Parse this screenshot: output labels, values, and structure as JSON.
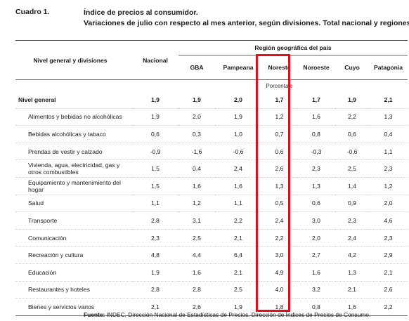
{
  "caption": {
    "label": "Cuadro 1.",
    "title_line1": "Índice de precios al consumidor.",
    "title_line2": "Variaciones de julio con respecto al mes anterior, según divisiones. Total nacional y regiones"
  },
  "table": {
    "header": {
      "first_col": "Nivel general y divisiones",
      "national": "Nacional",
      "region_group": "Región geográfica del país",
      "regions": [
        "GBA",
        "Pampeana",
        "Noreste",
        "Noroeste",
        "Cuyo",
        "Patagonia"
      ]
    },
    "unit": "Porcentaje",
    "rows": [
      {
        "label": "Nivel general",
        "values": [
          "1,9",
          "1,9",
          "2,0",
          "1,7",
          "1,7",
          "1,9",
          "2,1"
        ]
      },
      {
        "label": "Alimentos y bebidas no alcohólicas",
        "values": [
          "1,9",
          "2,0",
          "1,9",
          "1,2",
          "1,6",
          "2,2",
          "1,3"
        ]
      },
      {
        "label": "Bebidas alcohólicas y tabaco",
        "values": [
          "0,6",
          "0,3",
          "1,0",
          "0,7",
          "0,8",
          "0,6",
          "0,4"
        ]
      },
      {
        "label": "Prendas de vestir y calzado",
        "values": [
          "-0,9",
          "-1,6",
          "-0,6",
          "0,6",
          "-0,3",
          "-0,6",
          "1,1"
        ]
      },
      {
        "label": "Vivienda, agua, electricidad, gas y otros combustibles",
        "values": [
          "1,5",
          "0,4",
          "2,4",
          "2,6",
          "2,3",
          "2,5",
          "2,3"
        ]
      },
      {
        "label": "Equipamiento y mantenimiento del hogar",
        "values": [
          "1,5",
          "1,6",
          "1,6",
          "1,3",
          "1,3",
          "1,4",
          "1,2"
        ]
      },
      {
        "label": "Salud",
        "values": [
          "1,1",
          "1,2",
          "1,1",
          "0,5",
          "0,6",
          "0,9",
          "2,0"
        ]
      },
      {
        "label": "Transporte",
        "values": [
          "2,8",
          "3,1",
          "2,2",
          "2,4",
          "3,0",
          "2,3",
          "4,6"
        ]
      },
      {
        "label": "Comunicación",
        "values": [
          "2,3",
          "2,5",
          "2,1",
          "2,2",
          "2,0",
          "2,4",
          "2,3"
        ]
      },
      {
        "label": "Recreación y cultura",
        "values": [
          "4,8",
          "4,4",
          "6,4",
          "3,0",
          "2,7",
          "4,2",
          "2,9"
        ]
      },
      {
        "label": "Educación",
        "values": [
          "1,9",
          "1,6",
          "2,1",
          "4,9",
          "1,6",
          "1,3",
          "2,1"
        ]
      },
      {
        "label": "Restaurantes y hoteles",
        "values": [
          "2,8",
          "2,8",
          "2,5",
          "4,0",
          "3,2",
          "2,1",
          "2,6"
        ]
      },
      {
        "label": "Bienes y servicios varios",
        "values": [
          "2,1",
          "2,6",
          "1,9",
          "1,8",
          "0,8",
          "1,6",
          "2,2"
        ]
      }
    ]
  },
  "highlight": {
    "column": "Noreste",
    "color": "#e0101a"
  },
  "source": {
    "label": "Fuente:",
    "text": "INDEC, Dirección Nacional de Estadísticas de Precios. Dirección de Índices de Precios de Consumo."
  }
}
